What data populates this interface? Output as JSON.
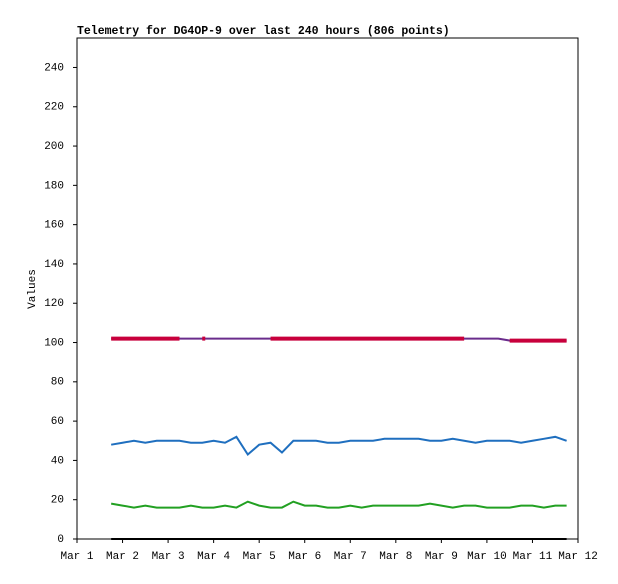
{
  "chart_data": {
    "type": "line",
    "title": "Telemetry for DG4OP-9 over last 240 hours (806 points)",
    "y_label": "Values",
    "x": [
      1.75,
      2,
      2.25,
      2.5,
      2.75,
      3,
      3.25,
      3.5,
      3.75,
      4,
      4.25,
      4.5,
      4.75,
      5,
      5.25,
      5.5,
      5.75,
      6,
      6.25,
      6.5,
      6.75,
      7,
      7.25,
      7.5,
      7.75,
      8,
      8.25,
      8.5,
      8.75,
      9,
      9.25,
      9.5,
      9.75,
      10,
      10.25,
      10.5,
      10.75,
      11,
      11.25,
      11.5,
      11.75
    ],
    "series": [
      {
        "color": "#6a2c8c",
        "values": [
          102,
          102,
          102,
          102,
          102,
          102,
          102,
          102,
          102,
          102,
          102,
          102,
          102,
          102,
          102,
          102,
          102,
          102,
          102,
          102,
          102,
          102,
          102,
          102,
          102,
          102,
          102,
          102,
          102,
          102,
          102,
          102,
          102,
          102,
          102,
          101,
          101,
          101,
          101,
          101,
          101
        ]
      },
      {
        "color": "#c8003c",
        "values": [
          102,
          102,
          102,
          102,
          102,
          102,
          102,
          null,
          102,
          null,
          null,
          null,
          null,
          null,
          102,
          102,
          102,
          102,
          102,
          102,
          102,
          102,
          102,
          102,
          102,
          102,
          102,
          102,
          102,
          102,
          102,
          102,
          null,
          null,
          null,
          101,
          101,
          101,
          101,
          101,
          101
        ]
      },
      {
        "color": "#1f6fbf",
        "values": [
          48,
          49,
          50,
          49,
          50,
          50,
          50,
          49,
          49,
          50,
          49,
          52,
          43,
          48,
          49,
          44,
          50,
          50,
          50,
          49,
          49,
          50,
          50,
          50,
          51,
          51,
          51,
          51,
          50,
          50,
          51,
          50,
          49,
          50,
          50,
          50,
          49,
          50,
          51,
          52,
          50
        ]
      },
      {
        "color": "#22a022",
        "values": [
          18,
          17,
          16,
          17,
          16,
          16,
          16,
          17,
          16,
          16,
          17,
          16,
          19,
          17,
          16,
          16,
          19,
          17,
          17,
          16,
          16,
          17,
          16,
          17,
          17,
          17,
          17,
          17,
          18,
          17,
          16,
          17,
          17,
          16,
          16,
          16,
          17,
          17,
          16,
          17,
          17
        ]
      },
      {
        "color": "#000000",
        "values": [
          0,
          0,
          0,
          0,
          0,
          0,
          0,
          0,
          0,
          0,
          0,
          0,
          0,
          0,
          0,
          0,
          0,
          0,
          0,
          0,
          0,
          0,
          0,
          0,
          0,
          0,
          0,
          0,
          0,
          0,
          0,
          0,
          0,
          0,
          0,
          0,
          0,
          0,
          0,
          0,
          0
        ]
      }
    ],
    "xlim": [
      1,
      12
    ],
    "xticks": [
      {
        "value": 1,
        "label": "Mar 1"
      },
      {
        "value": 2,
        "label": "Mar 2"
      },
      {
        "value": 3,
        "label": "Mar 3"
      },
      {
        "value": 4,
        "label": "Mar 4"
      },
      {
        "value": 5,
        "label": "Mar 5"
      },
      {
        "value": 6,
        "label": "Mar 6"
      },
      {
        "value": 7,
        "label": "Mar 7"
      },
      {
        "value": 8,
        "label": "Mar 8"
      },
      {
        "value": 9,
        "label": "Mar 9"
      },
      {
        "value": 10,
        "label": "Mar 10"
      },
      {
        "value": 11,
        "label": "Mar 11"
      },
      {
        "value": 12,
        "label": "Mar 12"
      }
    ],
    "ylim": [
      0,
      255
    ],
    "yticks": [
      0,
      20,
      40,
      60,
      80,
      100,
      120,
      140,
      160,
      180,
      200,
      220,
      240
    ]
  }
}
